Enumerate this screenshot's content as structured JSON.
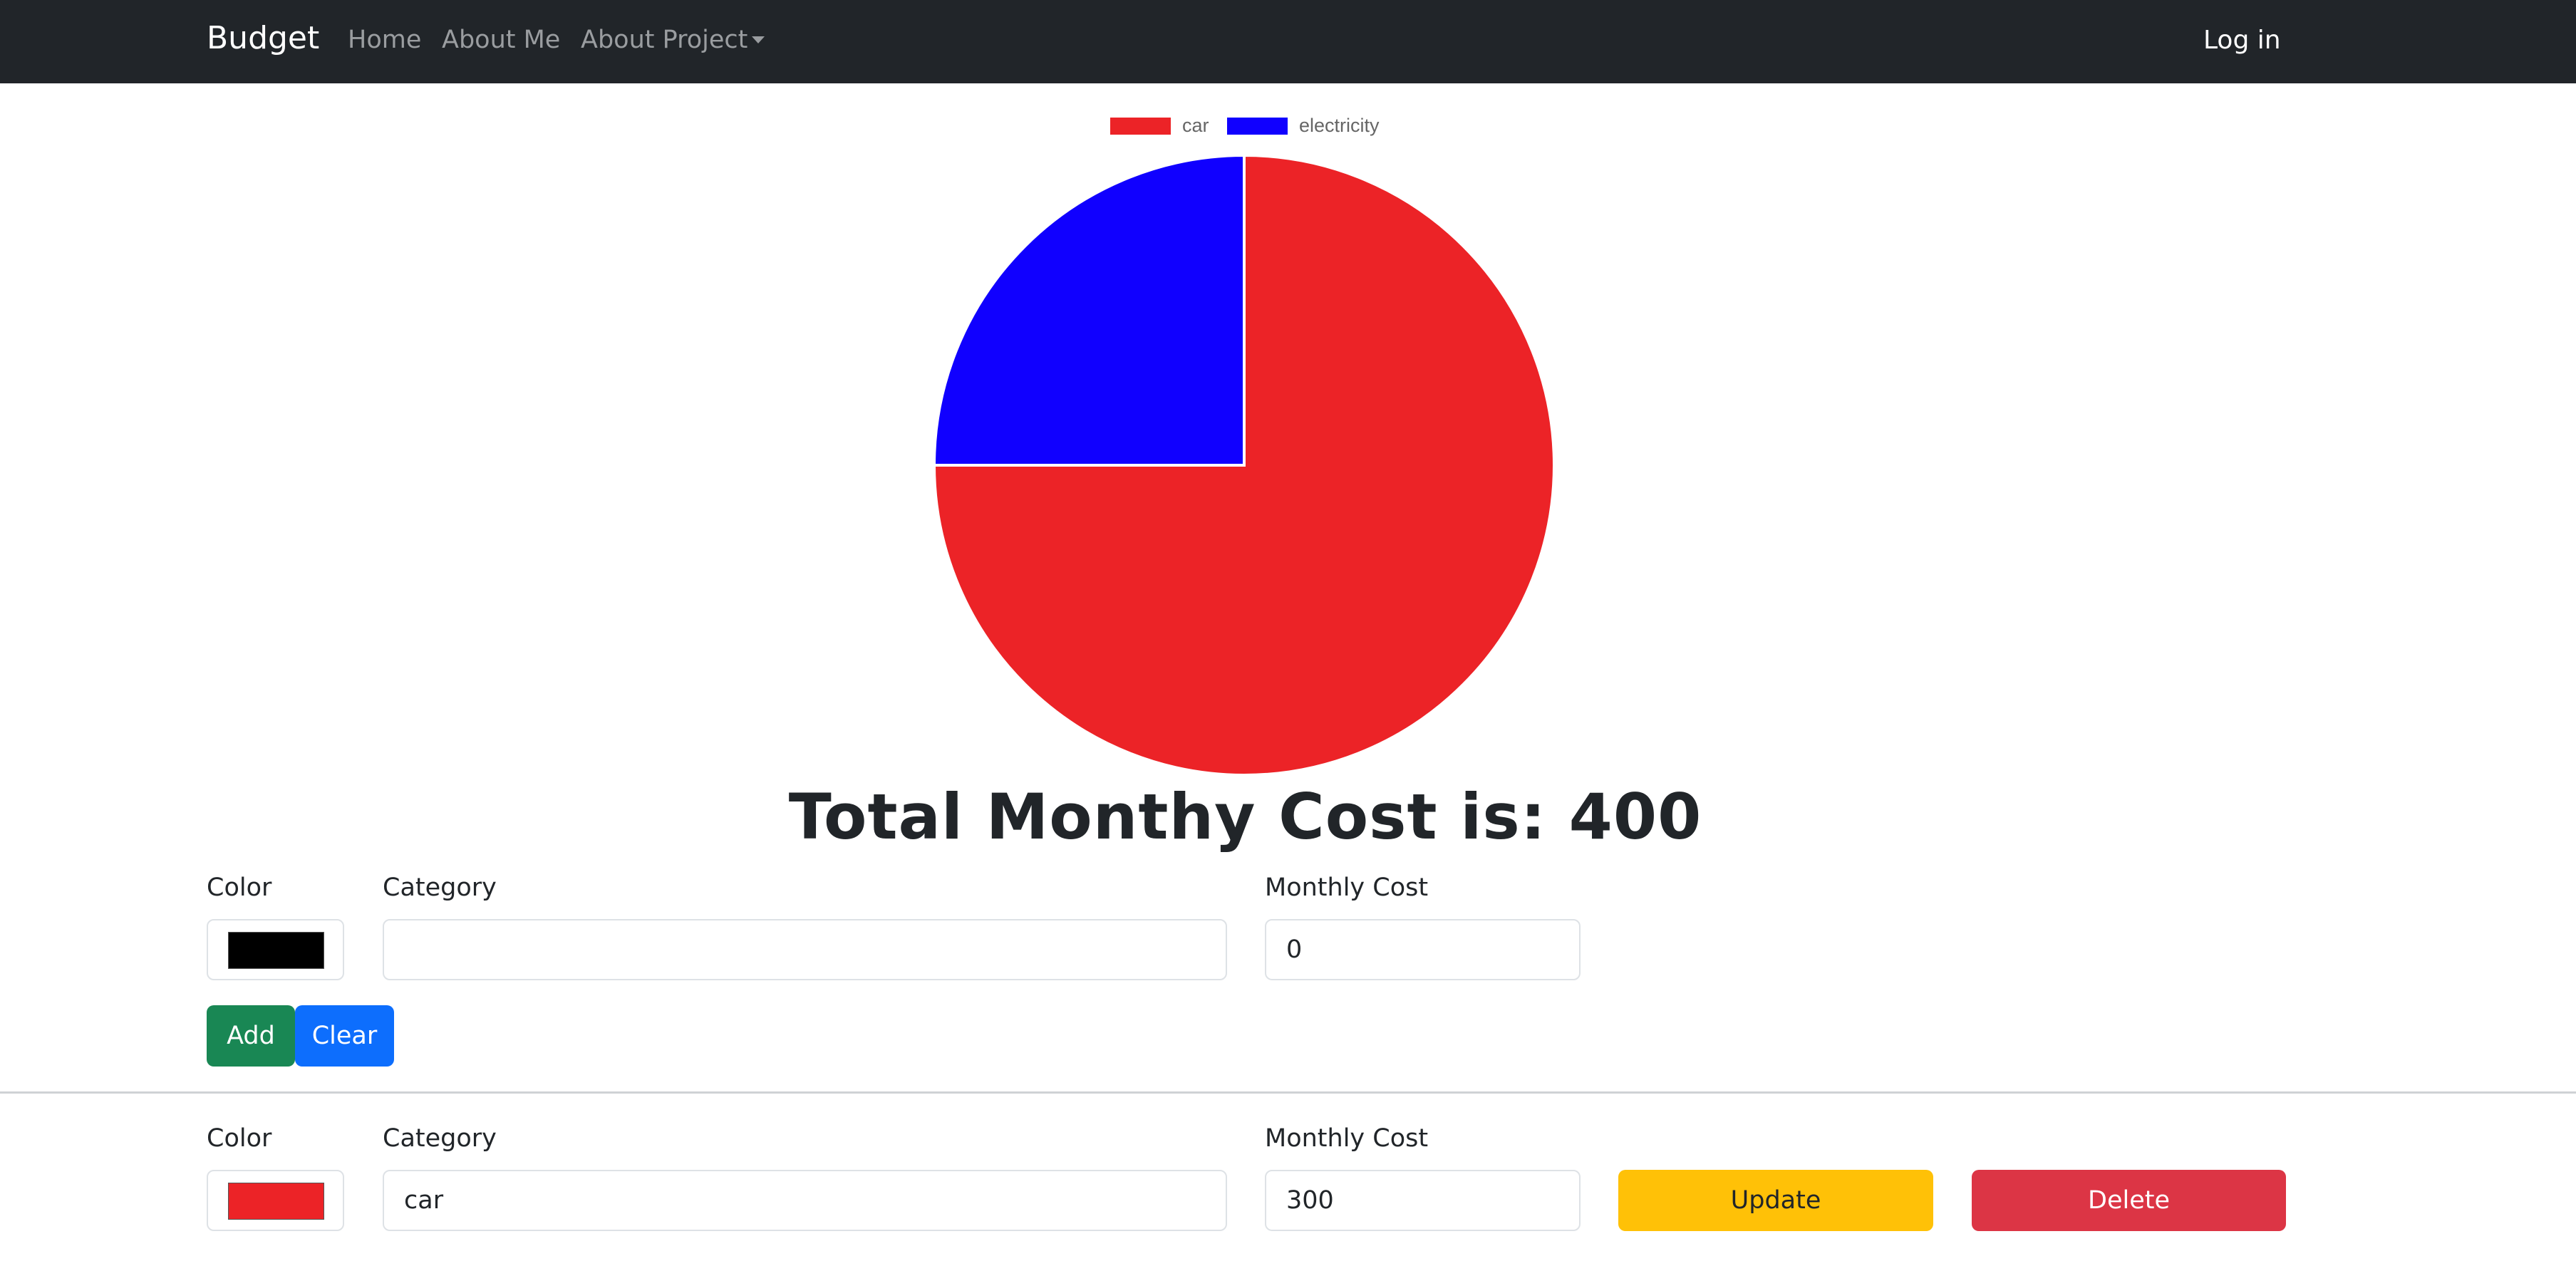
{
  "navbar": {
    "brand": "Budget",
    "links": [
      "Home",
      "About Me",
      "About Project"
    ],
    "login": "Log in"
  },
  "chart_data": {
    "type": "pie",
    "categories": [
      "car",
      "electricity"
    ],
    "values": [
      300,
      100
    ],
    "colors": [
      "#ec2327",
      "#1000ff"
    ],
    "legend": "top"
  },
  "total": {
    "text": "Total Monthy Cost is: 400"
  },
  "new_item": {
    "color_label": "Color",
    "category_label": "Category",
    "cost_label": "Monthly Cost",
    "color_value": "#000000",
    "category_value": "",
    "cost_value": "0",
    "add_label": "Add",
    "clear_label": "Clear"
  },
  "items": [
    {
      "color_label": "Color",
      "category_label": "Category",
      "cost_label": "Monthly Cost",
      "color_value": "#ec2327",
      "category_value": "car",
      "cost_value": "300",
      "update_label": "Update",
      "delete_label": "Delete"
    }
  ],
  "colors": {
    "navbar": "#212529",
    "add": "#198754",
    "clear": "#0d6efd",
    "update": "#ffc107",
    "delete": "#dc3545"
  }
}
